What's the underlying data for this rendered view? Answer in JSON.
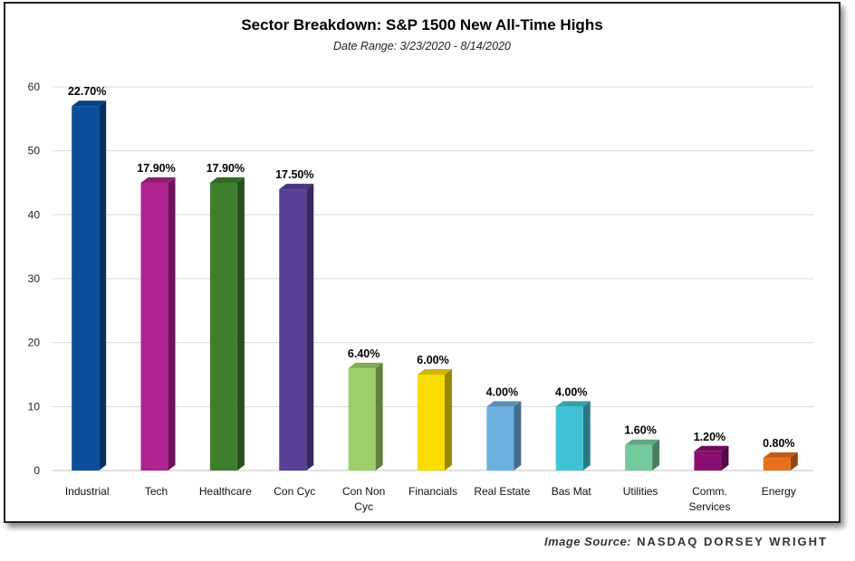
{
  "chart_data": {
    "type": "bar",
    "title": "Sector Breakdown: S&P 1500 New All-Time Highs",
    "subtitle": "Date Range: 3/23/2020 - 8/14/2020",
    "categories": [
      [
        "Industrial"
      ],
      [
        "Tech"
      ],
      [
        "Healthcare"
      ],
      [
        "Con Cyc"
      ],
      [
        "Con Non",
        "Cyc"
      ],
      [
        "Financials"
      ],
      [
        "Real Estate"
      ],
      [
        "Bas Mat"
      ],
      [
        "Utilities"
      ],
      [
        "Comm.",
        "Services"
      ],
      [
        "Energy"
      ]
    ],
    "values": [
      57,
      45,
      45,
      44,
      16,
      15,
      10,
      10,
      4,
      3,
      2
    ],
    "data_labels": [
      "22.70%",
      "17.90%",
      "17.90%",
      "17.50%",
      "6.40%",
      "6.00%",
      "4.00%",
      "4.00%",
      "1.60%",
      "1.20%",
      "0.80%"
    ],
    "colors": [
      "#0b4f9c",
      "#b0228f",
      "#3e7f2c",
      "#5a3f98",
      "#9dce69",
      "#f9dc00",
      "#6aaee0",
      "#3fc3d4",
      "#74c99a",
      "#8a0f70",
      "#e8711e"
    ],
    "ylim": [
      0,
      60
    ],
    "yticks": [
      0,
      10,
      20,
      30,
      40,
      50,
      60
    ],
    "grid": true,
    "xlabel": "",
    "ylabel": ""
  },
  "source": {
    "label": "Image Source:",
    "brand": "NASDAQ DORSEY WRIGHT"
  }
}
